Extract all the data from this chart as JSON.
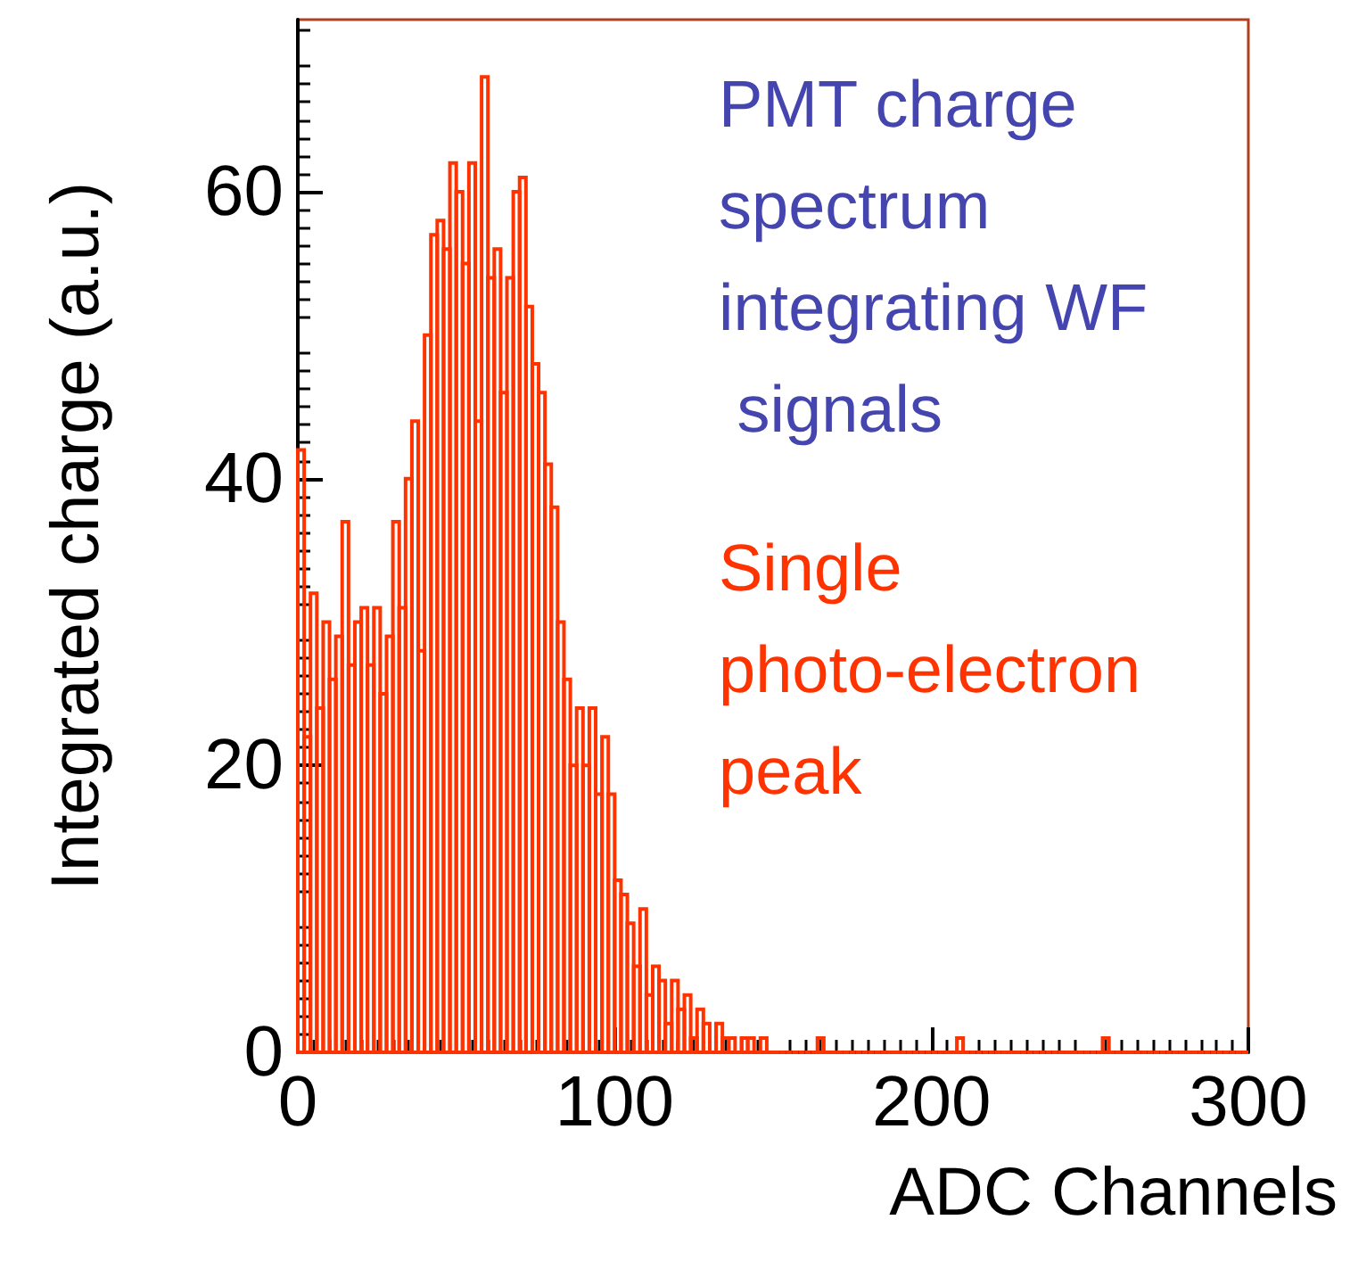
{
  "chart_data": {
    "type": "histogram",
    "xlabel": "ADC Channels",
    "ylabel": "Integrated charge (a.u.)",
    "annotations": [
      "PMT charge spectrum integrating WF signals",
      "Single photo-electron peak"
    ],
    "color": "#ff3300",
    "xlim": [
      0,
      300
    ],
    "ylim": [
      0,
      72
    ],
    "xticks": [
      0,
      100,
      200,
      300
    ],
    "yticks": [
      0,
      20,
      40,
      60
    ],
    "bins": [
      0,
      2,
      4,
      6,
      8,
      10,
      12,
      14,
      16,
      18,
      20,
      22,
      24,
      26,
      28,
      30,
      32,
      34,
      36,
      38,
      40,
      42,
      44,
      46,
      48,
      50,
      52,
      54,
      56,
      58,
      60,
      62,
      64,
      66,
      68,
      70,
      72,
      74,
      76,
      78,
      80,
      82,
      84,
      86,
      88,
      90,
      92,
      94,
      96,
      98,
      100,
      102,
      104,
      106,
      108,
      110,
      112,
      114,
      116,
      118,
      120,
      122,
      124,
      126,
      128,
      130,
      132,
      134,
      136,
      138,
      140,
      142,
      144,
      146,
      148,
      150,
      152,
      154,
      156,
      158,
      160,
      162,
      164,
      166,
      168,
      170,
      172,
      174,
      176,
      178,
      180,
      182,
      184,
      186,
      188,
      190,
      192,
      194,
      196,
      198,
      200,
      202,
      204,
      206,
      208,
      210,
      212,
      214,
      216,
      218,
      220,
      222,
      224,
      226,
      228,
      230,
      232,
      234,
      236,
      238,
      240,
      242,
      244,
      246,
      248,
      250,
      252,
      254,
      256,
      258,
      260,
      262,
      264,
      266,
      268,
      270,
      272,
      274,
      276,
      278,
      280,
      282,
      284,
      286,
      288,
      290,
      292,
      294,
      296,
      298,
      300
    ],
    "values": [
      42,
      22,
      32,
      24,
      30,
      26,
      29,
      37,
      27,
      30,
      31,
      27,
      31,
      25,
      29,
      37,
      31,
      40,
      44,
      28,
      50,
      57,
      58,
      56,
      62,
      60,
      55,
      62,
      44,
      68,
      54,
      56,
      46,
      54,
      60,
      61,
      52,
      48,
      46,
      41,
      38,
      30,
      26,
      20,
      24,
      20,
      24,
      18,
      22,
      18,
      12,
      11,
      9,
      6,
      10,
      4,
      6,
      5,
      2,
      5,
      3,
      4,
      1,
      3,
      2,
      0,
      2,
      1,
      1,
      0,
      1,
      1,
      0,
      1,
      0,
      0,
      0,
      0,
      0,
      0,
      0,
      0,
      1,
      0,
      0,
      0,
      0,
      0,
      0,
      0,
      0,
      0,
      0,
      0,
      0,
      0,
      0,
      0,
      0,
      0,
      0,
      0,
      0,
      0,
      1,
      0,
      0,
      0,
      0,
      0,
      0,
      0,
      0,
      0,
      0,
      0,
      0,
      0,
      0,
      0,
      0,
      0,
      0,
      0,
      0,
      0,
      0,
      1,
      0,
      0,
      0,
      0,
      0,
      0,
      0,
      0,
      0,
      0,
      0,
      0,
      0,
      0,
      0,
      0,
      0,
      0,
      0,
      0,
      0,
      0
    ]
  }
}
